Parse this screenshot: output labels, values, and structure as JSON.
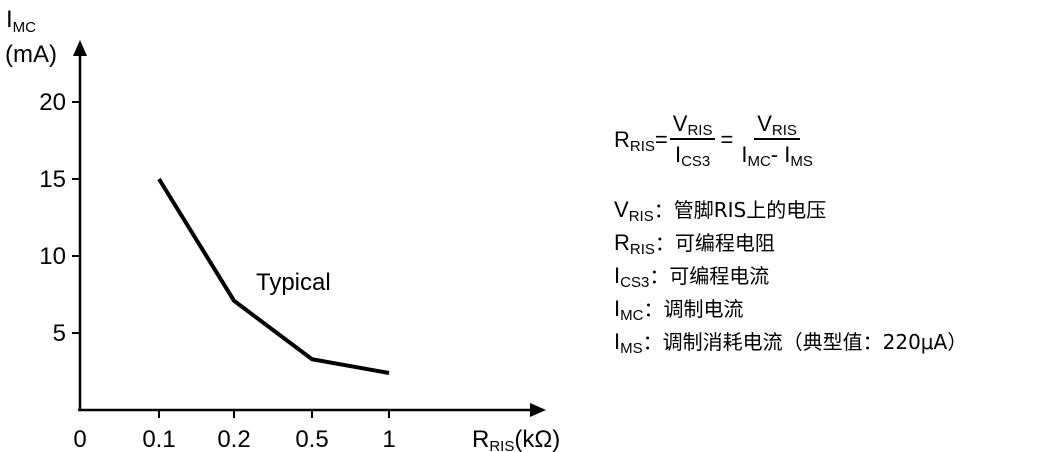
{
  "chart_data": {
    "type": "line",
    "y_unit_label": {
      "main": "I",
      "sub": "MC",
      "unit": "(mA)"
    },
    "x_unit_label": {
      "main": "R",
      "sub": "RIS",
      "unit": "(kΩ)"
    },
    "x_origin_label": "0",
    "categories": [
      "0.1",
      "0.2",
      "0.5",
      "1"
    ],
    "yticks": [
      5,
      10,
      15,
      20
    ],
    "ylim": [
      0,
      24
    ],
    "series": [
      {
        "values": [
          15,
          7.1,
          3.3,
          2.4
        ]
      }
    ],
    "annotation": "Typical",
    "grid": false
  },
  "equation": {
    "lhs": {
      "main": "R",
      "sub": "RIS"
    },
    "eq1": "=",
    "frac1": {
      "num": {
        "main": "V",
        "sub": "RIS"
      },
      "den": {
        "main": "I",
        "sub": "CS3"
      }
    },
    "eq2": "=",
    "frac2": {
      "num": {
        "main": "V",
        "sub": "RIS"
      },
      "den1": {
        "main": "I",
        "sub": "MC"
      },
      "minus": "-",
      "den2": {
        "main": "I",
        "sub": "MS"
      }
    }
  },
  "definitions": [
    {
      "main": "V",
      "sub": "RIS",
      "desc": "：管脚RIS上的电压"
    },
    {
      "main": "R",
      "sub": "RIS",
      "desc": "：可编程电阻"
    },
    {
      "main": "I",
      "sub": "CS3",
      "desc": "：可编程电流"
    },
    {
      "main": "I",
      "sub": "MC",
      "desc": "：调制电流"
    },
    {
      "main": "I",
      "sub": "MS",
      "desc": "：调制消耗电流（典型值：220μA）"
    }
  ]
}
